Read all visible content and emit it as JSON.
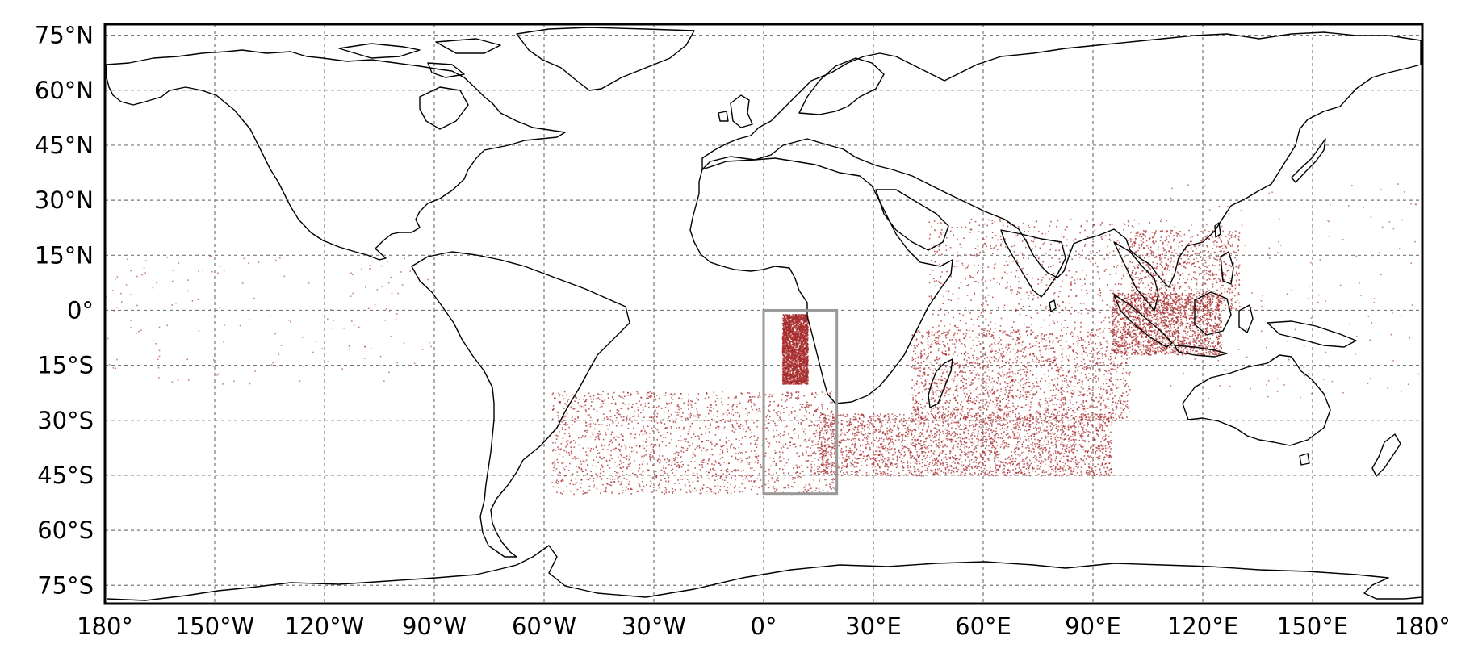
{
  "map": {
    "type": "scatter-map",
    "projection": "plate-carree",
    "lon_range": [
      -180,
      180
    ],
    "lat_range": [
      -80,
      78
    ],
    "gridlines": true,
    "gridline_style": "dashed",
    "lon_tick_labels": [
      "180°",
      "150°W",
      "120°W",
      "90°W",
      "60°W",
      "30°W",
      "0°",
      "30°E",
      "60°E",
      "90°E",
      "120°E",
      "150°E",
      "180°"
    ],
    "lon_ticks": [
      -180,
      -150,
      -120,
      -90,
      -60,
      -30,
      0,
      30,
      60,
      90,
      120,
      150,
      180
    ],
    "lat_tick_labels": [
      "75°N",
      "60°N",
      "45°N",
      "30°N",
      "15°N",
      "0°",
      "15°S",
      "30°S",
      "45°S",
      "60°S",
      "75°S"
    ],
    "lat_ticks": [
      75,
      60,
      45,
      30,
      15,
      0,
      -15,
      -30,
      -45,
      -60,
      -75
    ],
    "point_color": "#a52a2a",
    "coastline_color": "#000000",
    "release_box": {
      "lon_min": 0,
      "lon_max": 20,
      "lat_min": -50,
      "lat_max": 0,
      "color": "#999999"
    }
  },
  "chart_data": {
    "type": "scatter",
    "description_of_density": "particle positions (lon, lat in degrees)",
    "clusters": [
      {
        "lon": [
          5,
          12
        ],
        "lat": [
          -20,
          -1
        ],
        "density": "very high"
      },
      {
        "lon": [
          -58,
          20
        ],
        "lat": [
          -50,
          -22
        ],
        "density": "high"
      },
      {
        "lon": [
          15,
          95
        ],
        "lat": [
          -45,
          -28
        ],
        "density": "very high"
      },
      {
        "lon": [
          40,
          100
        ],
        "lat": [
          -30,
          -5
        ],
        "density": "high"
      },
      {
        "lon": [
          45,
          110
        ],
        "lat": [
          -5,
          25
        ],
        "density": "medium"
      },
      {
        "lon": [
          95,
          125
        ],
        "lat": [
          -12,
          5
        ],
        "density": "high"
      },
      {
        "lon": [
          100,
          130
        ],
        "lat": [
          0,
          22
        ],
        "density": "medium"
      },
      {
        "lon": [
          110,
          180
        ],
        "lat": [
          -25,
          35
        ],
        "density": "sparse"
      },
      {
        "lon": [
          -180,
          -90
        ],
        "lat": [
          -20,
          15
        ],
        "density": "sparse"
      }
    ]
  }
}
